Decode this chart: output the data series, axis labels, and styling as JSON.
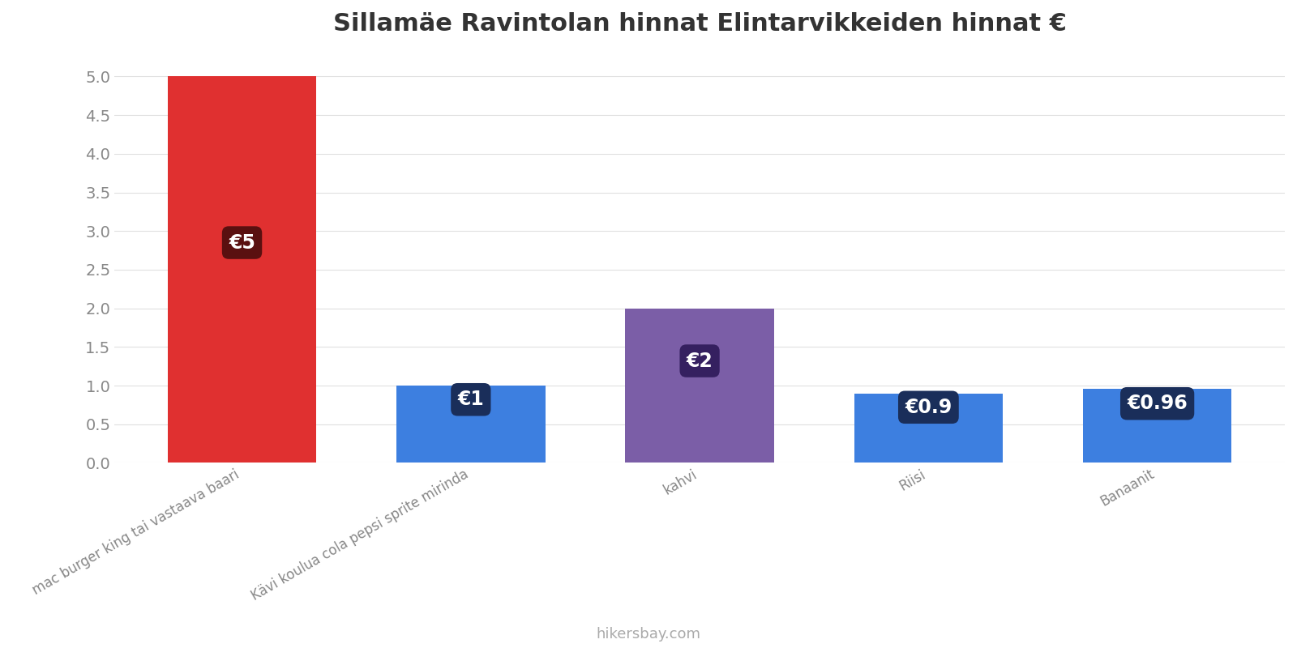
{
  "title": "Sillamäe Ravintolan hinnat Elintarvikkeiden hinnat €",
  "categories": [
    "mac burger king tai vastaava baari",
    "Kävi koulua cola pepsi sprite mirinda",
    "kahvi",
    "Riisi",
    "Banaanit"
  ],
  "values": [
    5.0,
    1.0,
    2.0,
    0.9,
    0.96
  ],
  "bar_colors": [
    "#e03030",
    "#3d7fe0",
    "#7b5ea7",
    "#3d7fe0",
    "#3d7fe0"
  ],
  "label_bg_colors": [
    "#5a1010",
    "#1a2e5a",
    "#352060",
    "#1a2e5a",
    "#1a2e5a"
  ],
  "labels": [
    "€5",
    "€1",
    "€2",
    "€0.9",
    "€0.96"
  ],
  "ylim": [
    0,
    5.3
  ],
  "yticks": [
    0.0,
    0.5,
    1.0,
    1.5,
    2.0,
    2.5,
    3.0,
    3.5,
    4.0,
    4.5,
    5.0
  ],
  "background_color": "#ffffff",
  "grid_color": "#e0e0e0",
  "watermark": "hikersbay.com",
  "title_fontsize": 22,
  "tick_fontsize": 14,
  "label_fontsize": 17,
  "bar_width": 0.65
}
